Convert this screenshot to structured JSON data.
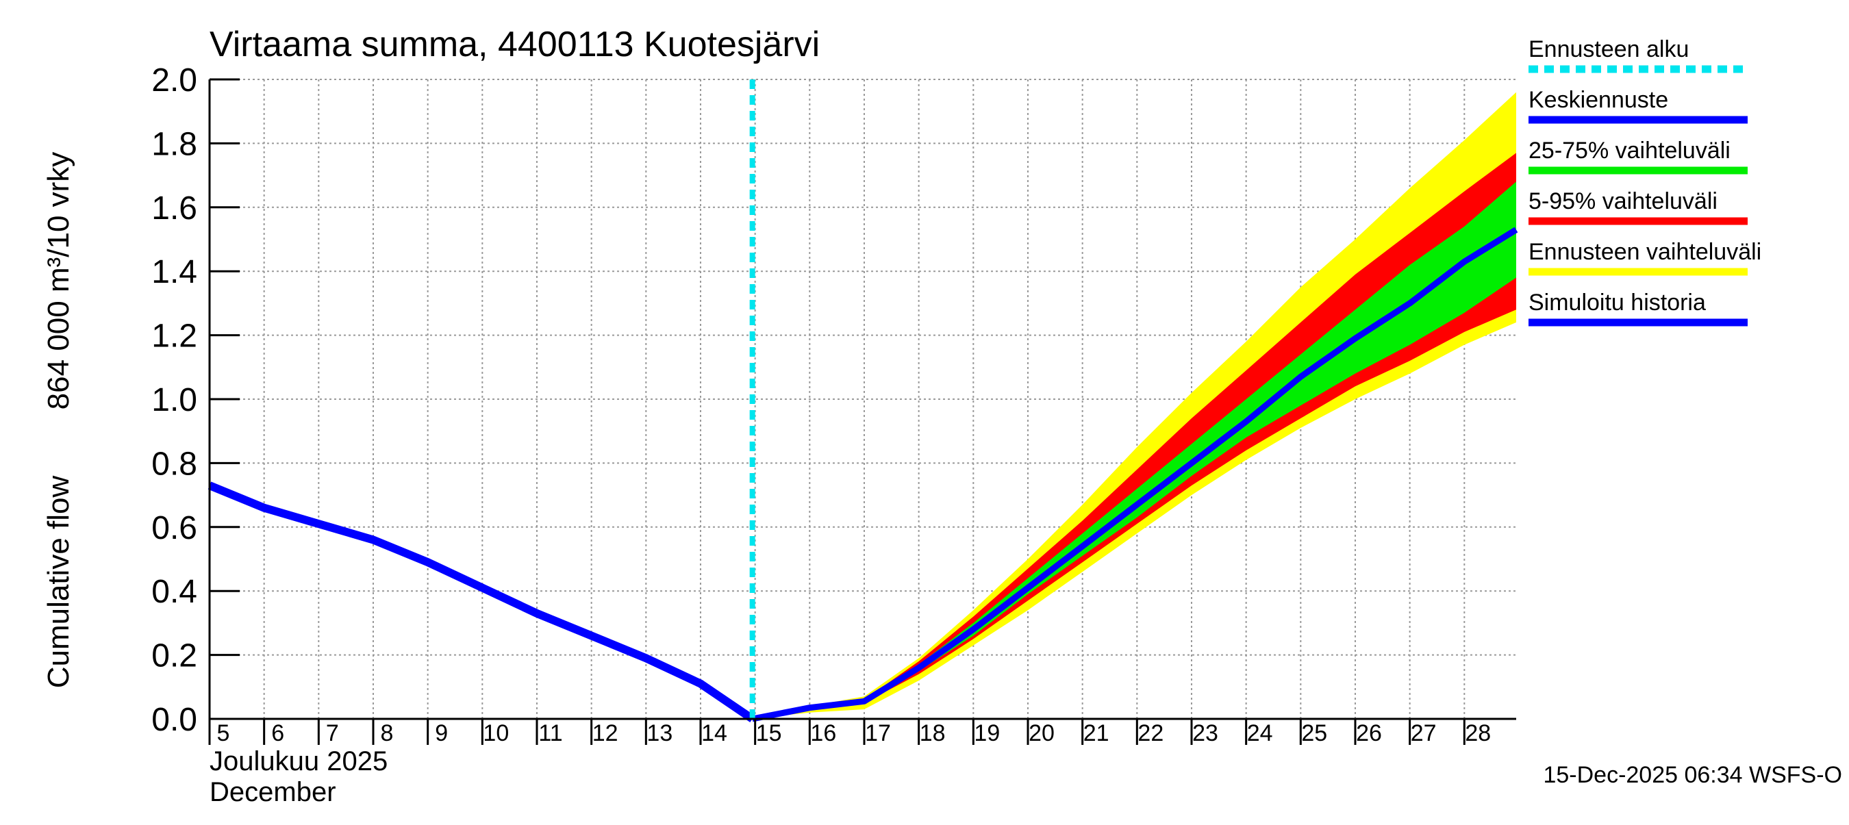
{
  "chart_data": {
    "type": "area",
    "title": "Virtaama summa, 4400113 Kuotesjärvi",
    "ylabel_line1": "Cumulative flow",
    "ylabel_line2": "864 000 m³/10 vrky",
    "month_label_fi": "Joulukuu  2025",
    "month_label_en": "December",
    "footer": "15-Dec-2025 06:34 WSFS-O",
    "ylim": [
      0,
      2.0
    ],
    "xlim": [
      5,
      28.95
    ],
    "y_ticks": [
      "0.0",
      "0.2",
      "0.4",
      "0.6",
      "0.8",
      "1.0",
      "1.2",
      "1.4",
      "1.6",
      "1.8",
      "2.0"
    ],
    "x_ticks": [
      "5",
      "6",
      "7",
      "8",
      "9",
      "10",
      "11",
      "12",
      "13",
      "14",
      "15",
      "16",
      "17",
      "18",
      "19",
      "20",
      "21",
      "22",
      "23",
      "24",
      "25",
      "26",
      "27",
      "28"
    ],
    "grid": true,
    "forecast_start": 14.95,
    "legend_position": "right",
    "legend": [
      {
        "label": "Ennusteen alku",
        "color": "#00e5ee",
        "style": "dashed"
      },
      {
        "label": "Keskiennuste",
        "color": "#0000ff",
        "style": "solid"
      },
      {
        "label": "25-75% vaihteluväli",
        "color": "#00ee00",
        "style": "solid"
      },
      {
        "label": "5-95% vaihteluväli",
        "color": "#ff0000",
        "style": "solid"
      },
      {
        "label": "Ennusteen vaihteluväli",
        "color": "#ffff00",
        "style": "solid"
      },
      {
        "label": "Simuloitu historia",
        "color": "#0000ff",
        "style": "solid"
      }
    ],
    "colors": {
      "forecast_range": "#ffff00",
      "p5_95": "#ff0000",
      "p25_75": "#00ee00",
      "median": "#0000ff",
      "history": "#0000ff",
      "forecast_start": "#00e5ee",
      "grid": "#999999"
    },
    "history": {
      "x": [
        5,
        6,
        7,
        8,
        9,
        10,
        11,
        12,
        13,
        14,
        14.95
      ],
      "y": [
        0.73,
        0.66,
        0.61,
        0.56,
        0.49,
        0.41,
        0.33,
        0.26,
        0.19,
        0.11,
        0.0
      ]
    },
    "bands": {
      "x": [
        14.95,
        16,
        17,
        18,
        19,
        20,
        21,
        22,
        23,
        24,
        25,
        26,
        27,
        28,
        28.95
      ],
      "forecast_min": [
        0.0,
        0.02,
        0.03,
        0.12,
        0.23,
        0.34,
        0.46,
        0.58,
        0.7,
        0.81,
        0.91,
        1.0,
        1.08,
        1.17,
        1.24
      ],
      "forecast_max": [
        0.0,
        0.04,
        0.07,
        0.19,
        0.34,
        0.5,
        0.67,
        0.85,
        1.02,
        1.18,
        1.35,
        1.5,
        1.66,
        1.81,
        1.96
      ],
      "p5": [
        0.0,
        0.03,
        0.05,
        0.14,
        0.25,
        0.37,
        0.49,
        0.61,
        0.73,
        0.84,
        0.94,
        1.04,
        1.12,
        1.21,
        1.28
      ],
      "p95": [
        0.0,
        0.04,
        0.06,
        0.18,
        0.32,
        0.47,
        0.62,
        0.78,
        0.94,
        1.09,
        1.24,
        1.39,
        1.52,
        1.65,
        1.77
      ],
      "p25": [
        0.0,
        0.03,
        0.05,
        0.15,
        0.26,
        0.39,
        0.51,
        0.63,
        0.76,
        0.88,
        0.98,
        1.08,
        1.17,
        1.27,
        1.38
      ],
      "p75": [
        0.0,
        0.04,
        0.06,
        0.17,
        0.3,
        0.44,
        0.58,
        0.72,
        0.86,
        1.0,
        1.14,
        1.28,
        1.42,
        1.54,
        1.68
      ],
      "median": [
        0.0,
        0.035,
        0.055,
        0.16,
        0.28,
        0.41,
        0.54,
        0.67,
        0.8,
        0.93,
        1.07,
        1.19,
        1.3,
        1.43,
        1.53
      ]
    }
  }
}
